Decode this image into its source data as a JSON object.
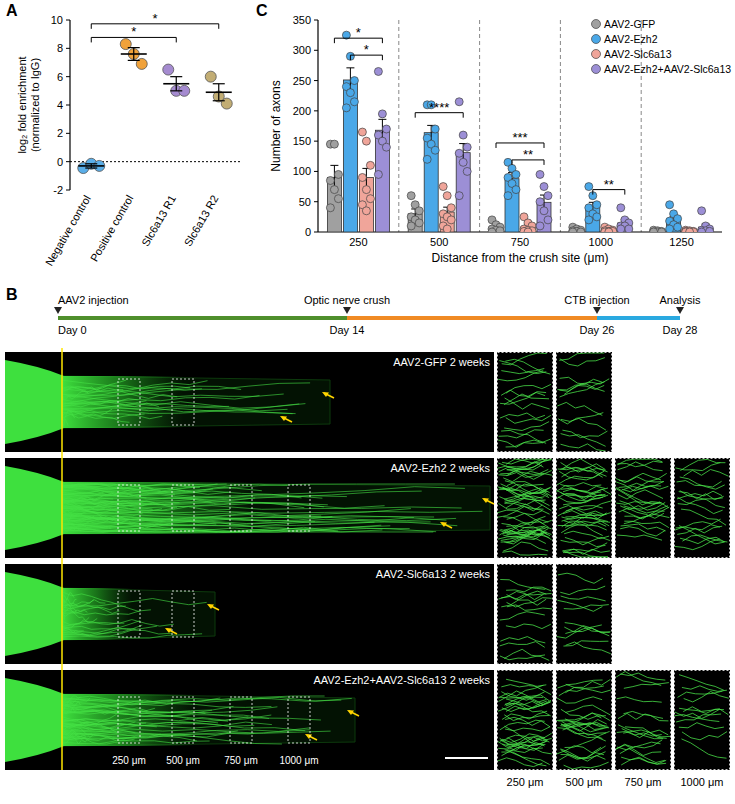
{
  "panel_labels": [
    "A",
    "B",
    "C"
  ],
  "chart_data": [
    {
      "type": "dotplot",
      "ylabel": [
        "log₂ fold enrichment",
        "(normalized to IgG)"
      ],
      "categories": [
        "Negative control",
        "Positive control",
        "Slc6a13 R1",
        "Slc6a13 R2"
      ],
      "values": [
        -0.3,
        7.6,
        5.5,
        4.9
      ],
      "errors": [
        0.15,
        0.45,
        0.5,
        0.6
      ],
      "points": [
        [
          -0.45,
          -0.15,
          -0.3
        ],
        [
          8.3,
          7.6,
          6.9
        ],
        [
          6.5,
          5.0,
          5.0
        ],
        [
          6.0,
          4.6,
          4.1
        ]
      ],
      "colors": [
        "#5aaee8",
        "#f0a23b",
        "#a58bd0",
        "#c2ad74"
      ],
      "ylim": [
        -2,
        10
      ],
      "yticks": [
        -2,
        0,
        2,
        4,
        6,
        8,
        10
      ],
      "reference_line": 0,
      "significance": [
        {
          "from": "Negative control",
          "to": "Slc6a13 R1",
          "label": "*"
        },
        {
          "from": "Negative control",
          "to": "Slc6a13 R2",
          "label": "*"
        }
      ]
    },
    {
      "type": "bar",
      "xlabel": "Distance from the crush site (μm)",
      "ylabel": "Number of axons",
      "categories": [
        250,
        500,
        750,
        1000,
        1250
      ],
      "ylim": [
        0,
        350
      ],
      "yticks": [
        0,
        50,
        100,
        150,
        200,
        250,
        300,
        350
      ],
      "legend": "top-right",
      "series": [
        {
          "name": "AAV2-GFP",
          "color": "#a0a0a0",
          "values": [
            90,
            30,
            7,
            3,
            1
          ],
          "errors": [
            20,
            8,
            3,
            1,
            0.5
          ],
          "points": [
            [
              145,
              145,
              95,
              85,
              70,
              55,
              40
            ],
            [
              60,
              45,
              35,
              25,
              20,
              15,
              10
            ],
            [
              20,
              12,
              8,
              5,
              3,
              2,
              0
            ],
            [
              8,
              5,
              3,
              2,
              1,
              0,
              0
            ],
            [
              3,
              2,
              1,
              0,
              0,
              0,
              0
            ]
          ]
        },
        {
          "name": "AAV2-Ezh2",
          "color": "#4aa8e8",
          "values": [
            251,
            164,
            88,
            42,
            20
          ],
          "errors": [
            20,
            12,
            10,
            7,
            5
          ],
          "points": [
            [
              325,
              290,
              250,
              240,
              230,
              215,
              205
            ],
            [
              210,
              210,
              170,
              155,
              145,
              135,
              120
            ],
            [
              115,
              105,
              95,
              90,
              80,
              70,
              60
            ],
            [
              75,
              60,
              45,
              40,
              30,
              25,
              20
            ],
            [
              45,
              30,
              22,
              18,
              12,
              8,
              5
            ]
          ]
        },
        {
          "name": "AAV2-Slc6a13",
          "color": "#f0a59a",
          "values": [
            90,
            33,
            8,
            3,
            1
          ],
          "errors": [
            15,
            8,
            3,
            1,
            0.5
          ],
          "points": [
            [
              165,
              150,
              110,
              90,
              70,
              55,
              45,
              35
            ],
            [
              75,
              60,
              40,
              30,
              25,
              20,
              10,
              5
            ],
            [
              25,
              15,
              10,
              5,
              3,
              2,
              1,
              0
            ],
            [
              8,
              5,
              3,
              2,
              1,
              1,
              0,
              0
            ],
            [
              3,
              2,
              1,
              1,
              0,
              0,
              0,
              0
            ]
          ]
        },
        {
          "name": "AAV2-Ezh2+AAV2-Slc6a13",
          "color": "#9c8fd6",
          "values": [
            168,
            131,
            49,
            15,
            8
          ],
          "errors": [
            18,
            15,
            12,
            6,
            5
          ],
          "points": [
            [
              265,
              195,
              170,
              160,
              150,
              140,
              95
            ],
            [
              215,
              160,
              140,
              130,
              115,
              100,
              60
            ],
            [
              95,
              75,
              60,
              50,
              35,
              20,
              10
            ],
            [
              40,
              20,
              15,
              10,
              10,
              5,
              5
            ],
            [
              35,
              10,
              5,
              3,
              2,
              1,
              0
            ]
          ]
        }
      ],
      "significance": [
        {
          "category": 250,
          "from": "AAV2-Ezh2",
          "to": "AAV2-Ezh2+AAV2-Slc6a13",
          "label": "*"
        },
        {
          "category": 250,
          "from": "AAV2-GFP",
          "to": "AAV2-Ezh2+AAV2-Slc6a13",
          "label": "*"
        },
        {
          "category": 500,
          "from": "AAV2-GFP",
          "to": "AAV2-Ezh2+AAV2-Slc6a13",
          "label": "****"
        },
        {
          "category": 750,
          "from": "AAV2-Ezh2",
          "to": "AAV2-Ezh2+AAV2-Slc6a13",
          "label": "**"
        },
        {
          "category": 750,
          "from": "AAV2-GFP",
          "to": "AAV2-Ezh2+AAV2-Slc6a13",
          "label": "***"
        },
        {
          "category": 1000,
          "from": "AAV2-Ezh2",
          "to": "AAV2-Ezh2+AAV2-Slc6a13",
          "label": "**"
        }
      ]
    }
  ],
  "timeline": [
    {
      "label": "AAV2 injection",
      "day": "Day 0"
    },
    {
      "label": "Optic nerve crush",
      "day": "Day 14"
    },
    {
      "label": "CTB injection",
      "day": "Day 26"
    },
    {
      "label": "Analysis",
      "day": "Day 28"
    }
  ],
  "images": {
    "rows": [
      {
        "label": "AAV2-GFP 2 weeks",
        "insets": 2
      },
      {
        "label": "AAV2-Ezh2 2 weeks",
        "insets": 4
      },
      {
        "label": "AAV2-Slc6a13 2 weeks",
        "insets": 2
      },
      {
        "label": "AAV2-Ezh2+AAV2-Slc6a13 2 weeks",
        "insets": 4
      }
    ],
    "distance_labels": [
      "250 μm",
      "500 μm",
      "750 μm",
      "1000 μm"
    ]
  }
}
